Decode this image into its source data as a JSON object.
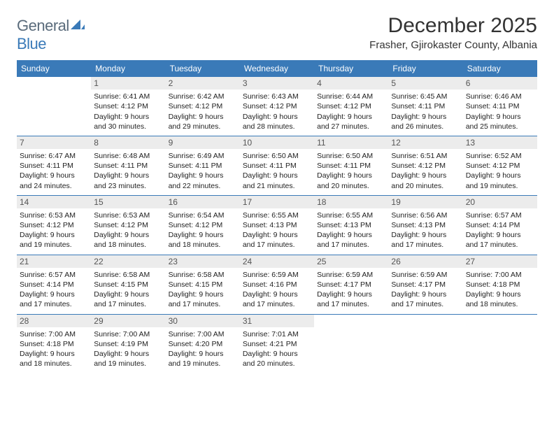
{
  "brand": {
    "part1": "General",
    "part2": "Blue"
  },
  "title": "December 2025",
  "location": "Frasher, Gjirokaster County, Albania",
  "day_names": [
    "Sunday",
    "Monday",
    "Tuesday",
    "Wednesday",
    "Thursday",
    "Friday",
    "Saturday"
  ],
  "colors": {
    "header_bg": "#3a7ab8",
    "daynum_bg": "#ececec",
    "rule": "#3a7ab8",
    "text": "#222222",
    "logo_gray": "#5a6b7b",
    "logo_blue": "#3a7ab8"
  },
  "weeks": [
    [
      {
        "n": "",
        "empty": true
      },
      {
        "n": "1",
        "sr": "6:41 AM",
        "ss": "4:12 PM",
        "dh": "9",
        "dm": "30"
      },
      {
        "n": "2",
        "sr": "6:42 AM",
        "ss": "4:12 PM",
        "dh": "9",
        "dm": "29"
      },
      {
        "n": "3",
        "sr": "6:43 AM",
        "ss": "4:12 PM",
        "dh": "9",
        "dm": "28"
      },
      {
        "n": "4",
        "sr": "6:44 AM",
        "ss": "4:12 PM",
        "dh": "9",
        "dm": "27"
      },
      {
        "n": "5",
        "sr": "6:45 AM",
        "ss": "4:11 PM",
        "dh": "9",
        "dm": "26"
      },
      {
        "n": "6",
        "sr": "6:46 AM",
        "ss": "4:11 PM",
        "dh": "9",
        "dm": "25"
      }
    ],
    [
      {
        "n": "7",
        "sr": "6:47 AM",
        "ss": "4:11 PM",
        "dh": "9",
        "dm": "24"
      },
      {
        "n": "8",
        "sr": "6:48 AM",
        "ss": "4:11 PM",
        "dh": "9",
        "dm": "23"
      },
      {
        "n": "9",
        "sr": "6:49 AM",
        "ss": "4:11 PM",
        "dh": "9",
        "dm": "22"
      },
      {
        "n": "10",
        "sr": "6:50 AM",
        "ss": "4:11 PM",
        "dh": "9",
        "dm": "21"
      },
      {
        "n": "11",
        "sr": "6:50 AM",
        "ss": "4:11 PM",
        "dh": "9",
        "dm": "20"
      },
      {
        "n": "12",
        "sr": "6:51 AM",
        "ss": "4:12 PM",
        "dh": "9",
        "dm": "20"
      },
      {
        "n": "13",
        "sr": "6:52 AM",
        "ss": "4:12 PM",
        "dh": "9",
        "dm": "19"
      }
    ],
    [
      {
        "n": "14",
        "sr": "6:53 AM",
        "ss": "4:12 PM",
        "dh": "9",
        "dm": "19"
      },
      {
        "n": "15",
        "sr": "6:53 AM",
        "ss": "4:12 PM",
        "dh": "9",
        "dm": "18"
      },
      {
        "n": "16",
        "sr": "6:54 AM",
        "ss": "4:12 PM",
        "dh": "9",
        "dm": "18"
      },
      {
        "n": "17",
        "sr": "6:55 AM",
        "ss": "4:13 PM",
        "dh": "9",
        "dm": "17"
      },
      {
        "n": "18",
        "sr": "6:55 AM",
        "ss": "4:13 PM",
        "dh": "9",
        "dm": "17"
      },
      {
        "n": "19",
        "sr": "6:56 AM",
        "ss": "4:13 PM",
        "dh": "9",
        "dm": "17"
      },
      {
        "n": "20",
        "sr": "6:57 AM",
        "ss": "4:14 PM",
        "dh": "9",
        "dm": "17"
      }
    ],
    [
      {
        "n": "21",
        "sr": "6:57 AM",
        "ss": "4:14 PM",
        "dh": "9",
        "dm": "17"
      },
      {
        "n": "22",
        "sr": "6:58 AM",
        "ss": "4:15 PM",
        "dh": "9",
        "dm": "17"
      },
      {
        "n": "23",
        "sr": "6:58 AM",
        "ss": "4:15 PM",
        "dh": "9",
        "dm": "17"
      },
      {
        "n": "24",
        "sr": "6:59 AM",
        "ss": "4:16 PM",
        "dh": "9",
        "dm": "17"
      },
      {
        "n": "25",
        "sr": "6:59 AM",
        "ss": "4:17 PM",
        "dh": "9",
        "dm": "17"
      },
      {
        "n": "26",
        "sr": "6:59 AM",
        "ss": "4:17 PM",
        "dh": "9",
        "dm": "17"
      },
      {
        "n": "27",
        "sr": "7:00 AM",
        "ss": "4:18 PM",
        "dh": "9",
        "dm": "18"
      }
    ],
    [
      {
        "n": "28",
        "sr": "7:00 AM",
        "ss": "4:18 PM",
        "dh": "9",
        "dm": "18"
      },
      {
        "n": "29",
        "sr": "7:00 AM",
        "ss": "4:19 PM",
        "dh": "9",
        "dm": "19"
      },
      {
        "n": "30",
        "sr": "7:00 AM",
        "ss": "4:20 PM",
        "dh": "9",
        "dm": "19"
      },
      {
        "n": "31",
        "sr": "7:01 AM",
        "ss": "4:21 PM",
        "dh": "9",
        "dm": "20"
      },
      {
        "n": "",
        "empty": true
      },
      {
        "n": "",
        "empty": true
      },
      {
        "n": "",
        "empty": true
      }
    ]
  ],
  "labels": {
    "sunrise": "Sunrise:",
    "sunset": "Sunset:",
    "daylight1": "Daylight:",
    "hours_word": "hours",
    "and_word": "and",
    "minutes_word": "minutes."
  }
}
